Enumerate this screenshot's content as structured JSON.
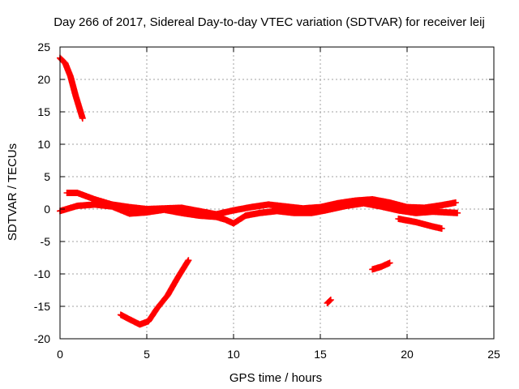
{
  "chart_data": {
    "type": "scatter",
    "title": "Day 266 of 2017, Sidereal Day-to-day VTEC variation (SDTVAR) for receiver leij",
    "xlabel": "GPS time / hours",
    "ylabel": "SDTVAR / TECUs",
    "xlim": [
      0,
      25
    ],
    "ylim": [
      -20,
      25
    ],
    "xticks": [
      0,
      5,
      10,
      15,
      20,
      25
    ],
    "yticks": [
      -20,
      -15,
      -10,
      -5,
      0,
      5,
      10,
      15,
      20,
      25
    ],
    "grid": true,
    "legend": "none",
    "marker": "plus",
    "series_color": "#ff0000",
    "series": [
      {
        "name": "track-early-descent",
        "values": [
          [
            0.0,
            23.3
          ],
          [
            0.3,
            22.5
          ],
          [
            0.6,
            20.5
          ],
          [
            0.9,
            17.5
          ],
          [
            1.3,
            14.0
          ]
        ]
      },
      {
        "name": "track-main-upper",
        "values": [
          [
            0.4,
            2.5
          ],
          [
            1.0,
            2.5
          ],
          [
            2.0,
            1.5
          ],
          [
            3.0,
            0.7
          ],
          [
            4.0,
            0.3
          ],
          [
            5.0,
            0.0
          ],
          [
            6.0,
            0.1
          ],
          [
            7.0,
            0.2
          ],
          [
            8.0,
            -0.3
          ],
          [
            9.0,
            -0.8
          ],
          [
            10.0,
            -0.2
          ],
          [
            11.0,
            0.3
          ],
          [
            12.0,
            0.7
          ],
          [
            13.0,
            0.4
          ],
          [
            14.0,
            0.1
          ],
          [
            15.0,
            0.3
          ],
          [
            16.0,
            0.9
          ],
          [
            17.0,
            1.3
          ],
          [
            18.0,
            1.5
          ],
          [
            19.0,
            1.0
          ],
          [
            20.0,
            0.3
          ],
          [
            21.0,
            0.2
          ],
          [
            22.0,
            0.6
          ],
          [
            22.8,
            1.0
          ]
        ]
      },
      {
        "name": "track-main-lower",
        "values": [
          [
            0.0,
            -0.3
          ],
          [
            1.0,
            0.5
          ],
          [
            2.0,
            0.7
          ],
          [
            3.0,
            0.4
          ],
          [
            4.0,
            -0.7
          ],
          [
            5.0,
            -0.5
          ],
          [
            6.0,
            -0.1
          ],
          [
            7.0,
            -0.6
          ],
          [
            8.0,
            -1.0
          ],
          [
            9.0,
            -1.2
          ],
          [
            9.5,
            -1.6
          ],
          [
            10.0,
            -2.2
          ],
          [
            10.7,
            -1.0
          ],
          [
            11.5,
            -0.6
          ],
          [
            12.5,
            -0.3
          ],
          [
            13.5,
            -0.6
          ],
          [
            14.5,
            -0.6
          ],
          [
            15.3,
            -0.2
          ],
          [
            16.5,
            0.5
          ],
          [
            17.5,
            0.9
          ],
          [
            18.5,
            0.4
          ],
          [
            19.5,
            -0.2
          ],
          [
            20.5,
            -0.6
          ],
          [
            21.5,
            -0.4
          ],
          [
            22.9,
            -0.6
          ]
        ]
      },
      {
        "name": "track-late-decline",
        "values": [
          [
            19.5,
            -1.5
          ],
          [
            20.5,
            -2.0
          ],
          [
            21.5,
            -2.7
          ],
          [
            22.0,
            -3.0
          ]
        ]
      },
      {
        "name": "track-trough-rise",
        "values": [
          [
            3.5,
            -16.3
          ],
          [
            4.0,
            -17.0
          ],
          [
            4.6,
            -17.8
          ],
          [
            5.1,
            -17.3
          ],
          [
            5.6,
            -15.3
          ],
          [
            6.2,
            -13.3
          ],
          [
            6.8,
            -10.5
          ],
          [
            7.4,
            -7.9
          ]
        ]
      },
      {
        "name": "track-short-mid",
        "values": [
          [
            18.0,
            -9.3
          ],
          [
            18.5,
            -8.9
          ],
          [
            19.0,
            -8.3
          ]
        ]
      },
      {
        "name": "track-isolated",
        "values": [
          [
            15.4,
            -14.5
          ],
          [
            15.6,
            -14.0
          ]
        ]
      }
    ]
  }
}
